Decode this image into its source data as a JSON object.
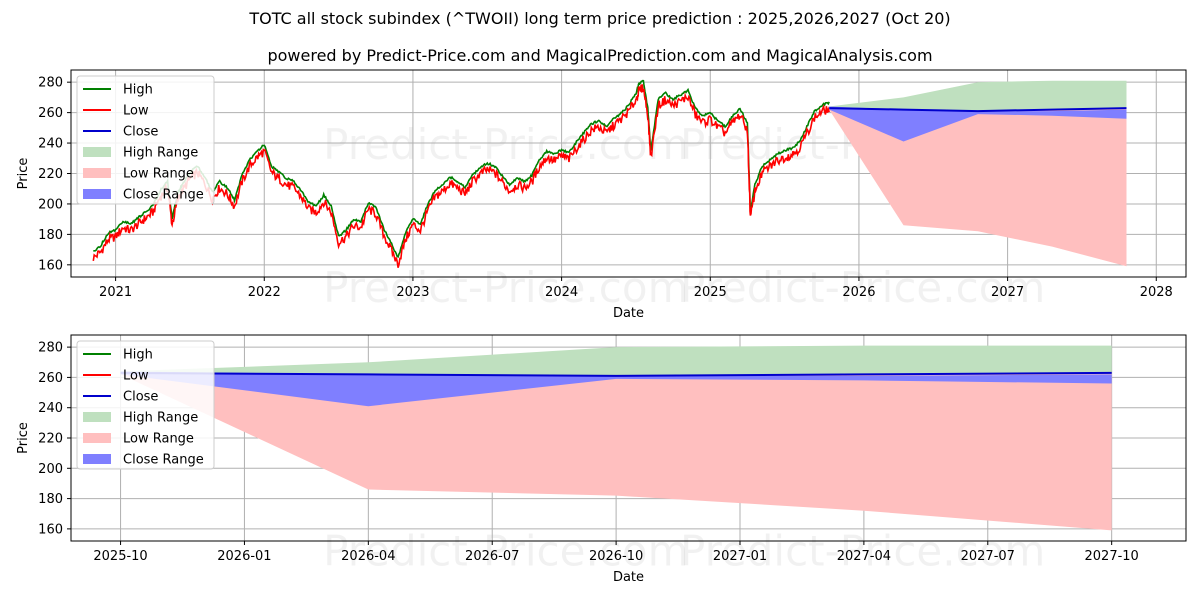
{
  "title": "TOTC all stock subindex (^TWOII) long term price prediction : 2025,2026,2027 (Oct 20)",
  "subtitle": "powered by Predict-Price.com and MagicalPrediction.com and MagicalAnalysis.com",
  "watermark": "Predict-Price.com",
  "colors": {
    "high": "#008000",
    "low": "#ff0000",
    "close": "#0000cc",
    "high_range": "#bfe0bf",
    "low_range": "#ffbfbf",
    "close_range": "#7f7fff",
    "grid": "#b0b0b0"
  },
  "legend": [
    "High",
    "Low",
    "Close",
    "High Range",
    "Low Range",
    "Close Range"
  ],
  "chart_data": [
    {
      "type": "line",
      "title": "Historical prices and prediction",
      "xlabel": "Date",
      "ylabel": "Price",
      "xlim": [
        2020.7,
        2028.2
      ],
      "ylim": [
        152,
        288
      ],
      "xticks": [
        2021,
        2022,
        2023,
        2024,
        2025,
        2026,
        2027,
        2028
      ],
      "xtick_labels": [
        "2021",
        "2022",
        "2023",
        "2024",
        "2025",
        "2026",
        "2027",
        "2028"
      ],
      "yticks": [
        160,
        180,
        200,
        220,
        240,
        260,
        280
      ],
      "ytick_labels": [
        "160",
        "180",
        "200",
        "220",
        "240",
        "260",
        "280"
      ],
      "grid": true,
      "legend_position": "upper-left",
      "history": {
        "x": [
          2020.85,
          2020.9,
          2020.95,
          2021.0,
          2021.05,
          2021.1,
          2021.15,
          2021.2,
          2021.25,
          2021.3,
          2021.35,
          2021.38,
          2021.42,
          2021.45,
          2021.5,
          2021.55,
          2021.6,
          2021.65,
          2021.7,
          2021.75,
          2021.8,
          2021.85,
          2021.9,
          2021.95,
          2022.0,
          2022.05,
          2022.1,
          2022.15,
          2022.2,
          2022.25,
          2022.3,
          2022.35,
          2022.4,
          2022.45,
          2022.5,
          2022.55,
          2022.6,
          2022.65,
          2022.7,
          2022.75,
          2022.8,
          2022.85,
          2022.9,
          2022.95,
          2023.0,
          2023.05,
          2023.1,
          2023.15,
          2023.2,
          2023.25,
          2023.3,
          2023.35,
          2023.4,
          2023.45,
          2023.5,
          2023.55,
          2023.6,
          2023.65,
          2023.7,
          2023.75,
          2023.8,
          2023.85,
          2023.9,
          2023.95,
          2024.0,
          2024.05,
          2024.1,
          2024.15,
          2024.2,
          2024.25,
          2024.3,
          2024.35,
          2024.4,
          2024.45,
          2024.5,
          2024.52,
          2024.55,
          2024.58,
          2024.6,
          2024.65,
          2024.7,
          2024.75,
          2024.8,
          2024.85,
          2024.9,
          2024.95,
          2025.0,
          2025.05,
          2025.1,
          2025.15,
          2025.2,
          2025.25,
          2025.27,
          2025.3,
          2025.35,
          2025.4,
          2025.45,
          2025.5,
          2025.55,
          2025.6,
          2025.65,
          2025.7,
          2025.75,
          2025.8
        ],
        "close": [
          166,
          170,
          178,
          180,
          186,
          184,
          188,
          192,
          196,
          206,
          212,
          188,
          205,
          210,
          218,
          222,
          215,
          205,
          212,
          208,
          200,
          216,
          226,
          232,
          236,
          222,
          218,
          214,
          212,
          206,
          198,
          196,
          203,
          196,
          176,
          180,
          187,
          186,
          198,
          195,
          182,
          172,
          162,
          178,
          188,
          184,
          197,
          206,
          210,
          215,
          212,
          208,
          216,
          221,
          224,
          222,
          216,
          210,
          214,
          212,
          216,
          226,
          232,
          230,
          233,
          231,
          238,
          244,
          250,
          252,
          248,
          253,
          257,
          262,
          270,
          276,
          278,
          260,
          232,
          266,
          270,
          266,
          269,
          272,
          260,
          255,
          257,
          252,
          248,
          255,
          260,
          250,
          192,
          210,
          222,
          226,
          230,
          232,
          234,
          238,
          248,
          258,
          262,
          264
        ]
      },
      "prediction": {
        "x": [
          2025.8,
          2026.3,
          2026.8,
          2027.3,
          2027.8
        ],
        "close": [
          263,
          262,
          261,
          262,
          263
        ],
        "high_range": [
          264,
          270,
          280,
          281,
          281
        ],
        "low_range": [
          262,
          186,
          182,
          172,
          159
        ],
        "close_range_upper": [
          264,
          262,
          261,
          261,
          262
        ],
        "close_range_lower": [
          262,
          241,
          259,
          258,
          256
        ]
      }
    },
    {
      "type": "area",
      "title": "Prediction detail",
      "xlabel": "Date",
      "ylabel": "Price",
      "xlim": [
        -0.1,
        2.15
      ],
      "ylim": [
        152,
        288
      ],
      "xticks": [
        0,
        0.25,
        0.5,
        0.75,
        1.0,
        1.25,
        1.5,
        1.75,
        2.0
      ],
      "xtick_labels": [
        "2025-10",
        "2026-01",
        "2026-04",
        "2026-07",
        "2026-10",
        "2027-01",
        "2027-04",
        "2027-07",
        "2027-10"
      ],
      "yticks": [
        160,
        180,
        200,
        220,
        240,
        260,
        280
      ],
      "ytick_labels": [
        "160",
        "180",
        "200",
        "220",
        "240",
        "260",
        "280"
      ],
      "grid": true,
      "legend_position": "upper-left",
      "prediction": {
        "x": [
          0.0,
          0.5,
          1.0,
          1.5,
          2.0
        ],
        "close": [
          263,
          262,
          261,
          262,
          263
        ],
        "high_range": [
          264,
          270,
          280,
          281,
          281
        ],
        "low_range": [
          262,
          186,
          182,
          172,
          159
        ],
        "close_range_upper": [
          264,
          262,
          261,
          261,
          262
        ],
        "close_range_lower": [
          262,
          241,
          259,
          258,
          256
        ]
      }
    }
  ]
}
